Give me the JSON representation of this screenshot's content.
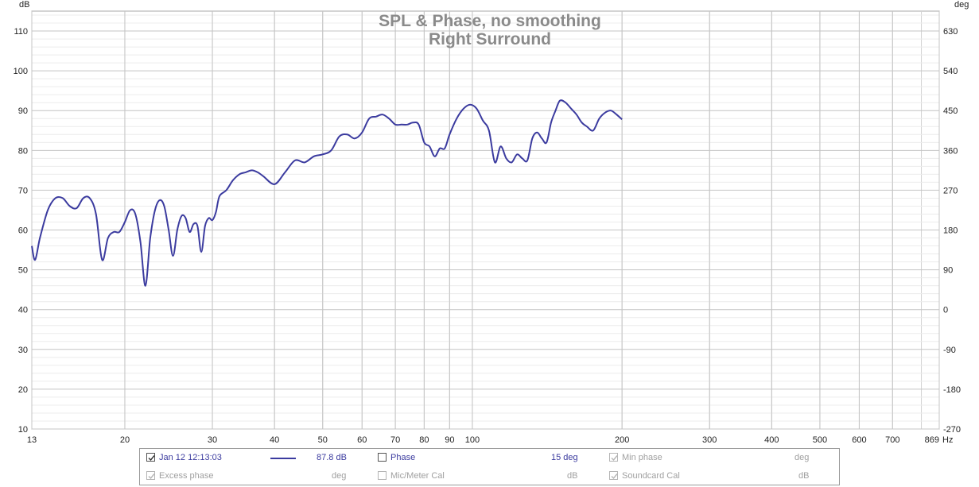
{
  "chart_data": {
    "type": "line",
    "title": "SPL & Phase, no smoothing",
    "subtitle": "Right Surround",
    "ylabel_left": "dB",
    "ylabel_right": "deg",
    "x_unit": "Hz",
    "x_scale": "log",
    "xlim": [
      13,
      869
    ],
    "ylim": [
      10,
      115
    ],
    "ylim_right": [
      -270,
      675
    ],
    "grid": true,
    "x_ticks": [
      13,
      20,
      30,
      40,
      50,
      60,
      70,
      80,
      90,
      100,
      200,
      300,
      400,
      500,
      600,
      700,
      869
    ],
    "x_tick_labels": [
      "13",
      "20",
      "30",
      "40",
      "50",
      "60",
      "70",
      "80",
      "90",
      "100",
      "200",
      "300",
      "400",
      "500",
      "600",
      "700",
      "869"
    ],
    "y_ticks": [
      10,
      20,
      30,
      40,
      50,
      60,
      70,
      80,
      90,
      100,
      110
    ],
    "y_tick_labels": [
      "10",
      "20",
      "30",
      "40",
      "50",
      "60",
      "70",
      "80",
      "90",
      "100",
      "110"
    ],
    "y_ticks_right": [
      -270,
      -180,
      -90,
      0,
      90,
      180,
      270,
      360,
      450,
      540,
      630
    ],
    "y_tick_labels_right": [
      "-270",
      "-180",
      "-90",
      "0",
      "90",
      "180",
      "270",
      "360",
      "450",
      "540",
      "630"
    ],
    "series": [
      {
        "color": "#3b3b9f",
        "x": [
          13,
          13.2,
          13.5,
          14,
          14.5,
          15,
          15.5,
          16,
          16.5,
          17,
          17.5,
          18,
          18.5,
          19,
          19.5,
          20,
          20.5,
          21,
          21.5,
          22,
          22.5,
          23,
          23.5,
          24,
          24.5,
          25,
          25.5,
          26,
          26.5,
          27,
          27.5,
          28,
          28.5,
          29,
          29.5,
          30,
          30.5,
          31,
          32,
          33,
          34,
          35,
          36,
          37,
          38,
          40,
          42,
          44,
          46,
          48,
          50,
          52,
          54,
          56,
          58,
          60,
          62,
          64,
          66,
          68,
          70,
          72,
          74,
          76,
          78,
          80,
          82,
          84,
          86,
          88,
          90,
          93,
          96,
          99,
          102,
          105,
          108,
          111,
          114,
          117,
          120,
          123,
          126,
          129,
          132,
          135,
          138,
          141,
          144,
          147,
          150,
          154,
          158,
          162,
          166,
          170,
          175,
          180,
          185,
          190,
          195,
          200
        ],
        "values": [
          56,
          52.5,
          58,
          65,
          68,
          68,
          66,
          65.5,
          68,
          68,
          64,
          52.5,
          58,
          59.5,
          59.5,
          62,
          65,
          64,
          57,
          46,
          58,
          65,
          67.5,
          66,
          60,
          53.5,
          60,
          63.5,
          63,
          59.5,
          61.5,
          61,
          54.5,
          61,
          63,
          62.5,
          64.5,
          68.5,
          70,
          72.5,
          74,
          74.5,
          75,
          74.5,
          73.5,
          71.5,
          74.5,
          77.5,
          77,
          78.5,
          79,
          80,
          83.5,
          84,
          83,
          84.5,
          88,
          88.5,
          89,
          88,
          86.5,
          86.5,
          86.5,
          87,
          86.5,
          82,
          81,
          78.5,
          80.5,
          80.5,
          84,
          88,
          90.5,
          91.5,
          90.5,
          87.5,
          85,
          77,
          81,
          78,
          77,
          79,
          78,
          77.5,
          83,
          84.5,
          83,
          82,
          87,
          90,
          92.5,
          92,
          90.5,
          89,
          87,
          86,
          85,
          88,
          89.5,
          90,
          89,
          87.8
        ]
      }
    ]
  },
  "legend": {
    "measurement_label": "Jan 12 12:13:03",
    "measurement_value": "87.8 dB",
    "phase_label": "Phase",
    "phase_value": "15 deg",
    "min_phase_label": "Min phase",
    "min_phase_unit": "deg",
    "excess_phase_label": "Excess phase",
    "excess_phase_unit": "deg",
    "mic_cal_label": "Mic/Meter Cal",
    "mic_cal_unit": "dB",
    "soundcard_cal_label": "Soundcard Cal",
    "soundcard_cal_unit": "dB",
    "checked": {
      "measurement": true,
      "phase": false,
      "min_phase": true,
      "excess_phase": true,
      "mic_cal": false,
      "soundcard_cal": true
    }
  }
}
